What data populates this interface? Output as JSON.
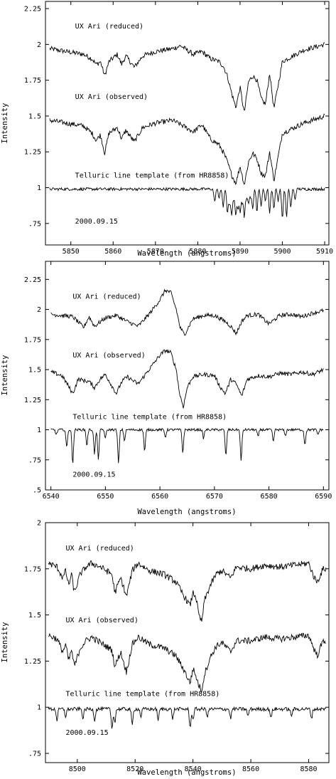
{
  "chart_data": [
    {
      "type": "line",
      "xlabel": "Wavelength (angstroms)",
      "ylabel": "Intensity",
      "xlim": [
        5844,
        5911
      ],
      "ylim": [
        0.6,
        2.3
      ],
      "x_ticks": [
        5850,
        5860,
        5870,
        5880,
        5890,
        5900,
        5910
      ],
      "y_ticks": [
        {
          "value": 0.75,
          "label": ".75"
        },
        {
          "value": 1.0,
          "label": "1"
        },
        {
          "value": 1.25,
          "label": "1.25"
        },
        {
          "value": 1.5,
          "label": "1.5"
        },
        {
          "value": 1.75,
          "label": "1.75"
        },
        {
          "value": 2.0,
          "label": "2"
        },
        {
          "value": 2.25,
          "label": "2.25"
        }
      ],
      "grid": false,
      "annotations": [
        {
          "text": "UX Ari (reduced)",
          "x": 5851,
          "y": 2.11
        },
        {
          "text": "UX Ari (observed)",
          "x": 5851,
          "y": 1.62
        },
        {
          "text": "Telluric line template (from HR8858)",
          "x": 5851,
          "y": 1.07
        },
        {
          "text": "2000.09.15",
          "x": 5851,
          "y": 0.75
        }
      ],
      "series": [
        {
          "base": 1.95,
          "x": [
            5845,
            5849,
            5853,
            5855,
            5856,
            5857,
            5858,
            5859,
            5861,
            5862,
            5863,
            5865,
            5867,
            5870,
            5874,
            5876,
            5879,
            5881,
            5883,
            5885,
            5886,
            5887,
            5888,
            5889,
            5890,
            5891,
            5892,
            5893,
            5894,
            5895,
            5896,
            5897,
            5898,
            5900,
            5905,
            5910
          ],
          "y": [
            1.97,
            1.95,
            1.93,
            1.9,
            1.86,
            1.88,
            1.78,
            1.88,
            1.93,
            1.86,
            1.92,
            1.84,
            1.92,
            1.95,
            1.97,
            1.99,
            1.93,
            1.95,
            1.9,
            1.88,
            1.85,
            1.78,
            1.66,
            1.56,
            1.7,
            1.52,
            1.74,
            1.78,
            1.75,
            1.62,
            1.58,
            1.8,
            1.55,
            1.88,
            1.96,
            2.0
          ]
        },
        {
          "base": 1.45,
          "x": [
            5845,
            5849,
            5853,
            5855,
            5856,
            5857,
            5858,
            5859,
            5861,
            5862,
            5863,
            5865,
            5867,
            5870,
            5874,
            5876,
            5879,
            5881,
            5883,
            5885,
            5886,
            5887,
            5888,
            5889,
            5890,
            5891,
            5892,
            5893,
            5894,
            5895,
            5896,
            5897,
            5898,
            5900,
            5905,
            5910
          ],
          "y": [
            1.47,
            1.45,
            1.43,
            1.38,
            1.33,
            1.37,
            1.24,
            1.38,
            1.42,
            1.34,
            1.4,
            1.32,
            1.42,
            1.45,
            1.47,
            1.44,
            1.39,
            1.44,
            1.34,
            1.3,
            1.25,
            1.18,
            1.09,
            1.03,
            1.15,
            1.02,
            1.18,
            1.24,
            1.2,
            1.1,
            1.08,
            1.25,
            1.05,
            1.38,
            1.45,
            1.5
          ]
        },
        {
          "base": 0.99,
          "x": [
            5884,
            5885,
            5886,
            5887,
            5887.5,
            5888,
            5888.5,
            5889,
            5889.5,
            5890,
            5890.5,
            5891,
            5891.5,
            5892,
            5892.5,
            5893,
            5894,
            5895,
            5896,
            5897,
            5898,
            5899,
            5900,
            5901,
            5902,
            5903
          ],
          "y": [
            0.9,
            0.93,
            0.86,
            0.82,
            0.89,
            0.8,
            0.91,
            0.8,
            0.86,
            0.83,
            0.9,
            0.79,
            0.93,
            0.88,
            0.94,
            0.86,
            0.83,
            0.87,
            0.91,
            0.82,
            0.85,
            0.91,
            0.78,
            0.79,
            0.86,
            0.92
          ]
        }
      ]
    },
    {
      "type": "line",
      "xlabel": "Wavelength (angstroms)",
      "ylabel": "Intensity",
      "xlim": [
        6539,
        6591
      ],
      "ylim": [
        0.5,
        2.4
      ],
      "x_ticks": [
        6540,
        6550,
        6560,
        6570,
        6580,
        6590
      ],
      "y_ticks": [
        {
          "value": 0.5,
          "label": ".5"
        },
        {
          "value": 0.75,
          "label": ".75"
        },
        {
          "value": 1.0,
          "label": "1"
        },
        {
          "value": 1.25,
          "label": "1.25"
        },
        {
          "value": 1.5,
          "label": "1.5"
        },
        {
          "value": 1.75,
          "label": "1.75"
        },
        {
          "value": 2.0,
          "label": "2"
        },
        {
          "value": 2.25,
          "label": "2.25"
        }
      ],
      "grid": false,
      "annotations": [
        {
          "text": "UX Ari (reduced)",
          "x": 6544,
          "y": 2.09
        },
        {
          "text": "UX Ari (observed)",
          "x": 6544,
          "y": 1.6
        },
        {
          "text": "Telluric line template (from HR8858)",
          "x": 6544,
          "y": 1.09
        },
        {
          "text": "2000.09.15",
          "x": 6544,
          "y": 0.61
        }
      ],
      "series": [
        {
          "base": 1.97,
          "x": [
            6540,
            6544,
            6546,
            6547,
            6548,
            6550,
            6552,
            6554,
            6556,
            6558,
            6559,
            6560,
            6561,
            6562,
            6563,
            6563.7,
            6564.5,
            6566,
            6568,
            6570,
            6572,
            6573,
            6574,
            6575,
            6576,
            6578,
            6580,
            6582,
            6584,
            6586,
            6588,
            6590
          ],
          "y": [
            1.96,
            1.94,
            1.85,
            1.94,
            1.86,
            1.93,
            1.95,
            1.9,
            1.86,
            1.96,
            2.02,
            2.08,
            2.16,
            2.14,
            2.0,
            1.85,
            1.79,
            1.92,
            1.95,
            1.95,
            1.9,
            1.86,
            1.8,
            1.9,
            1.95,
            1.96,
            1.88,
            1.95,
            1.96,
            1.94,
            1.97,
            1.99
          ]
        },
        {
          "base": 1.48,
          "x": [
            6540,
            6542,
            6543,
            6544,
            6545,
            6547,
            6548,
            6549,
            6550,
            6552,
            6553,
            6554,
            6556,
            6557,
            6558,
            6559,
            6560,
            6561,
            6562,
            6563,
            6563.6,
            6564.3,
            6565,
            6566,
            6568,
            6570,
            6571,
            6572,
            6573,
            6574,
            6575,
            6576,
            6578,
            6580,
            6582,
            6584,
            6586,
            6588,
            6590
          ],
          "y": [
            1.48,
            1.45,
            1.38,
            1.3,
            1.42,
            1.4,
            1.35,
            1.42,
            1.46,
            1.3,
            1.4,
            1.44,
            1.38,
            1.44,
            1.5,
            1.56,
            1.62,
            1.66,
            1.64,
            1.5,
            1.3,
            1.19,
            1.35,
            1.44,
            1.46,
            1.45,
            1.36,
            1.3,
            1.42,
            1.38,
            1.28,
            1.42,
            1.45,
            1.44,
            1.47,
            1.46,
            1.48,
            1.46,
            1.5
          ]
        },
        {
          "base": 1.0,
          "x": [
            6541,
            6542.9,
            6544.0,
            6546.6,
            6548.0,
            6548.7,
            6550.0,
            6552.4,
            6553.5,
            6557.2,
            6561.0,
            6564.2,
            6568.0,
            6572.1,
            6574.9,
            6578.0,
            6580.8,
            6583.0,
            6586.6,
            6589.0
          ],
          "y": [
            0.96,
            0.85,
            0.72,
            0.87,
            0.8,
            0.76,
            0.93,
            0.72,
            0.91,
            0.82,
            0.94,
            0.81,
            0.93,
            0.78,
            0.74,
            0.94,
            0.9,
            0.95,
            0.88,
            0.96
          ]
        }
      ]
    },
    {
      "type": "line",
      "xlabel": "Wavelength (angstroms)",
      "ylabel": "Intensity",
      "xlim": [
        8489,
        8587
      ],
      "ylim": [
        0.7,
        2.0
      ],
      "x_ticks": [
        8500,
        8520,
        8540,
        8560,
        8580
      ],
      "y_ticks": [
        {
          "value": 0.75,
          "label": ".75"
        },
        {
          "value": 1.0,
          "label": "1"
        },
        {
          "value": 1.25,
          "label": "1.25"
        },
        {
          "value": 1.5,
          "label": "1.5"
        },
        {
          "value": 1.75,
          "label": "1.75"
        },
        {
          "value": 2.0,
          "label": "2"
        }
      ],
      "grid": false,
      "annotations": [
        {
          "text": "UX Ari (reduced)",
          "x": 8496,
          "y": 1.85
        },
        {
          "text": "UX Ari (observed)",
          "x": 8496,
          "y": 1.46
        },
        {
          "text": "Telluric line template (from HR8858)",
          "x": 8496,
          "y": 1.06
        },
        {
          "text": "2000.09.15",
          "x": 8496,
          "y": 0.85
        }
      ],
      "series": [
        {
          "base": 1.76,
          "x": [
            8490,
            8493,
            8495,
            8496,
            8497,
            8498,
            8499,
            8501,
            8503,
            8505,
            8508,
            8510,
            8512,
            8513,
            8515,
            8517,
            8519,
            8521,
            8523,
            8525,
            8530,
            8534,
            8537,
            8539,
            8540,
            8541,
            8542,
            8543,
            8544,
            8546,
            8548,
            8550,
            8553,
            8555,
            8560,
            8565,
            8570,
            8575,
            8580,
            8582,
            8583,
            8585
          ],
          "y": [
            1.78,
            1.76,
            1.7,
            1.74,
            1.66,
            1.72,
            1.62,
            1.72,
            1.76,
            1.78,
            1.76,
            1.74,
            1.72,
            1.62,
            1.7,
            1.6,
            1.74,
            1.78,
            1.76,
            1.74,
            1.72,
            1.68,
            1.6,
            1.55,
            1.62,
            1.6,
            1.5,
            1.46,
            1.58,
            1.66,
            1.72,
            1.74,
            1.7,
            1.76,
            1.75,
            1.77,
            1.76,
            1.77,
            1.78,
            1.7,
            1.68,
            1.75
          ]
        },
        {
          "base": 1.37,
          "x": [
            8490,
            8493,
            8495,
            8496,
            8497,
            8498,
            8499,
            8501,
            8503,
            8505,
            8508,
            8510,
            8512,
            8513,
            8515,
            8517,
            8519,
            8521,
            8523,
            8525,
            8530,
            8534,
            8537,
            8539,
            8540,
            8541,
            8542,
            8543,
            8544,
            8546,
            8548,
            8550,
            8553,
            8555,
            8560,
            8565,
            8570,
            8575,
            8580,
            8582,
            8583,
            8585
          ],
          "y": [
            1.39,
            1.37,
            1.3,
            1.34,
            1.25,
            1.31,
            1.22,
            1.32,
            1.36,
            1.38,
            1.35,
            1.33,
            1.31,
            1.22,
            1.3,
            1.19,
            1.34,
            1.38,
            1.36,
            1.34,
            1.32,
            1.28,
            1.2,
            1.13,
            1.21,
            1.17,
            1.12,
            1.09,
            1.18,
            1.27,
            1.33,
            1.35,
            1.3,
            1.36,
            1.36,
            1.38,
            1.37,
            1.38,
            1.39,
            1.31,
            1.28,
            1.36
          ]
        },
        {
          "base": 0.99,
          "x": [
            8493,
            8496,
            8502,
            8506,
            8512,
            8513,
            8519,
            8522,
            8528,
            8533,
            8539,
            8540,
            8545,
            8553,
            8559,
            8567,
            8574,
            8581
          ],
          "y": [
            0.93,
            0.95,
            0.94,
            0.93,
            0.88,
            0.92,
            0.9,
            0.95,
            0.93,
            0.94,
            0.89,
            0.93,
            0.95,
            0.94,
            0.95,
            0.94,
            0.95,
            0.94
          ]
        }
      ]
    }
  ]
}
